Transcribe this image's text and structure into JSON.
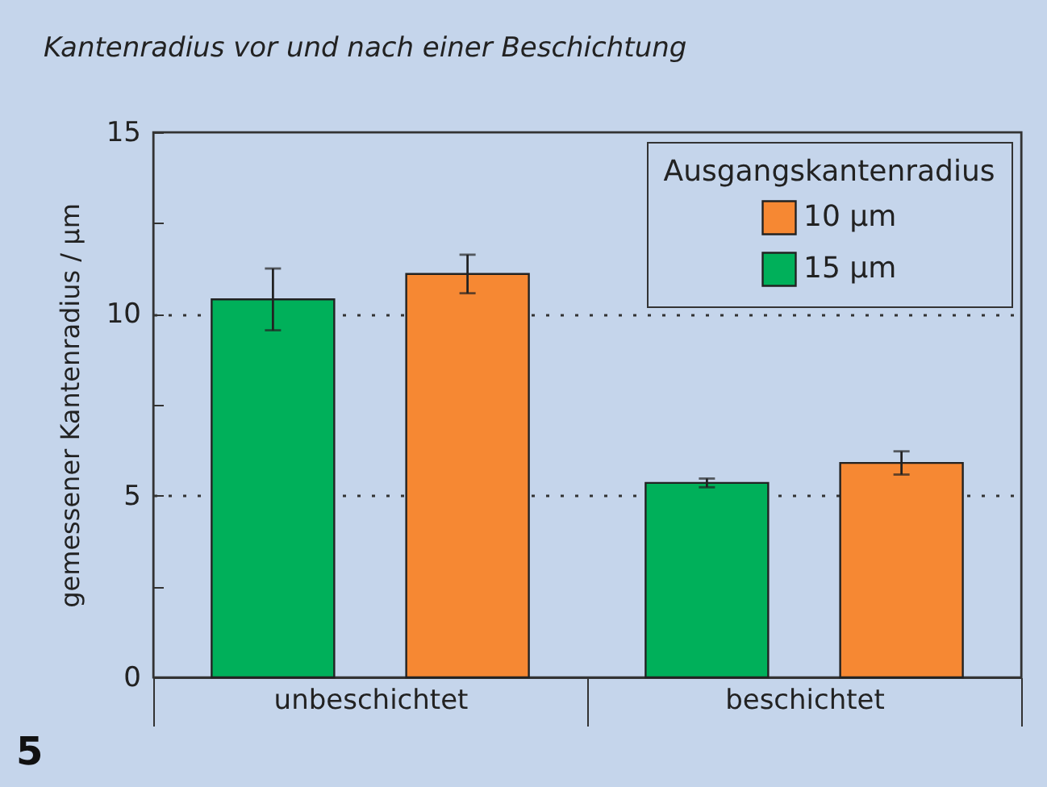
{
  "chart_data": {
    "type": "bar",
    "title": "Kantenradius vor und nach einer Beschichtung",
    "ylabel": "gemessener Kantenradius / µm",
    "legend_title": "Ausgangskantenradius",
    "categories": [
      "unbeschichtet",
      "beschichtet"
    ],
    "series": [
      {
        "name": "10 µm",
        "color": "#f68833",
        "values": [
          11.1,
          5.9
        ],
        "errors": [
          0.53,
          0.32
        ]
      },
      {
        "name": "15 µm",
        "color": "#00b05a",
        "values": [
          10.4,
          5.35
        ],
        "errors": [
          0.85,
          0.12
        ]
      }
    ],
    "ylim": [
      0,
      15
    ],
    "yticks": [
      0,
      {
        "value": 2.5,
        "label": null
      },
      5,
      {
        "value": 7.5,
        "label": null
      },
      10,
      {
        "value": 12.5,
        "label": null
      },
      15
    ],
    "grid": "y",
    "legend": "top right",
    "annotations": [
      "5"
    ]
  }
}
